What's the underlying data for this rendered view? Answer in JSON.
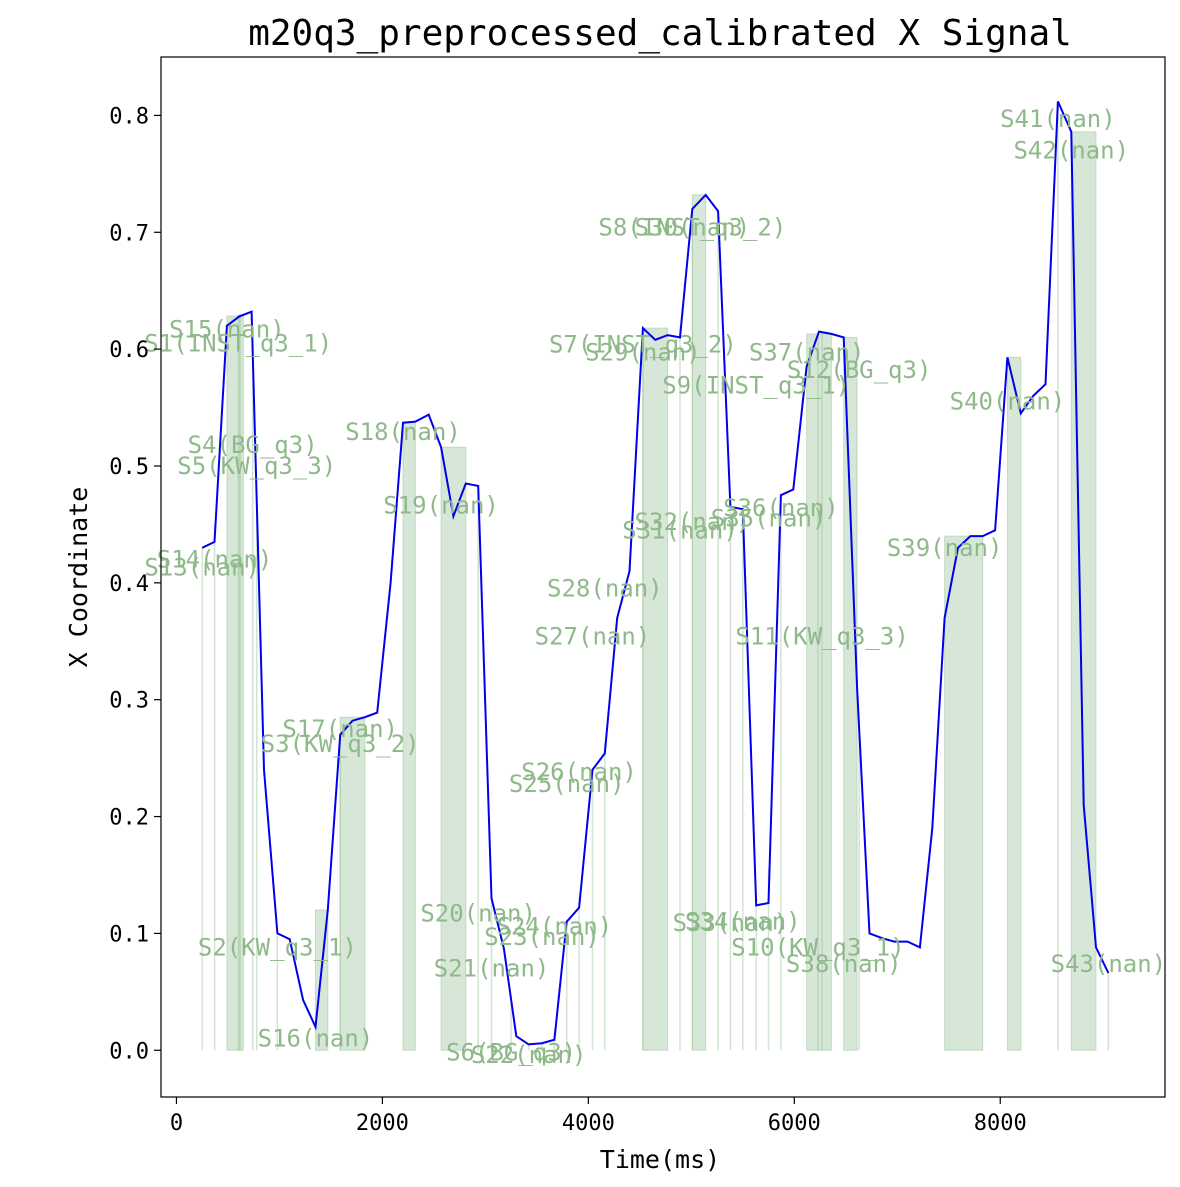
{
  "chart_data": {
    "type": "line",
    "title": "m20q3_preprocessed_calibrated X Signal",
    "xlabel": "Time(ms)",
    "ylabel": "X Coordinate",
    "xlim": [
      -150,
      9600
    ],
    "ylim": [
      -0.04,
      0.85
    ],
    "xticks": [
      0,
      2000,
      4000,
      6000,
      8000
    ],
    "xtick_labels": [
      "0",
      "2000",
      "4000",
      "6000",
      "8000"
    ],
    "yticks": [
      0.0,
      0.1,
      0.2,
      0.3,
      0.4,
      0.5,
      0.6,
      0.7,
      0.8
    ],
    "ytick_labels": [
      "0.0",
      "0.1",
      "0.2",
      "0.3",
      "0.4",
      "0.5",
      "0.6",
      "0.7",
      "0.8"
    ],
    "grid": false,
    "colors": {
      "signal": "#0000ee",
      "segments": "#9bc49a",
      "segment_text": "#8fb98a"
    },
    "series": [
      {
        "x": [
          250,
          370,
          490,
          610,
          730,
          850,
          980,
          1100,
          1230,
          1350,
          1470,
          1590,
          1710,
          1830,
          1950,
          2080,
          2200,
          2320,
          2450,
          2570,
          2690,
          2810,
          2930,
          3060,
          3180,
          3300,
          3420,
          3550,
          3670,
          3790,
          3910,
          4040,
          4160,
          4280,
          4400,
          4530,
          4650,
          4770,
          4890,
          5010,
          5140,
          5260,
          5380,
          5500,
          5630,
          5750,
          5870,
          5990,
          6120,
          6240,
          6360,
          6480,
          6610,
          6730,
          6850,
          6970,
          7100,
          7220,
          7340,
          7460,
          7590,
          7710,
          7830,
          7950,
          8070,
          8200,
          8320,
          8440,
          8560,
          8690,
          8810,
          8930,
          9050
        ],
        "values": [
          0.43,
          0.435,
          0.62,
          0.628,
          0.632,
          0.24,
          0.1,
          0.095,
          0.043,
          0.02,
          0.12,
          0.27,
          0.282,
          0.285,
          0.289,
          0.4,
          0.537,
          0.538,
          0.544,
          0.516,
          0.457,
          0.485,
          0.483,
          0.13,
          0.087,
          0.012,
          0.005,
          0.006,
          0.009,
          0.11,
          0.122,
          0.24,
          0.254,
          0.37,
          0.41,
          0.618,
          0.608,
          0.612,
          0.61,
          0.72,
          0.732,
          0.718,
          0.465,
          0.463,
          0.124,
          0.126,
          0.475,
          0.48,
          0.585,
          0.615,
          0.613,
          0.61,
          0.31,
          0.1,
          0.096,
          0.093,
          0.093,
          0.088,
          0.19,
          0.37,
          0.43,
          0.44,
          0.44,
          0.445,
          0.593,
          0.545,
          0.56,
          0.57,
          0.812,
          0.786,
          0.21,
          0.088,
          0.066
        ]
      }
    ],
    "segments": [
      {
        "label": "S1(INST_q3_1)",
        "start": 600,
        "end": 650
      },
      {
        "label": "S2(KW_q3_1)",
        "start": 980,
        "end": 1000
      },
      {
        "label": "S3(KW_q3_2)",
        "start": 1590,
        "end": 1610
      },
      {
        "label": "S4(BG_q3)",
        "start": 740,
        "end": 760
      },
      {
        "label": "S5(KW_q3_3)",
        "start": 780,
        "end": 790
      },
      {
        "label": "S6(BG_q3)",
        "start": 3250,
        "end": 3270
      },
      {
        "label": "S7(INST_q3_2)",
        "start": 4530,
        "end": 4550
      },
      {
        "label": "S8(INST_q3_2)",
        "start": 5010,
        "end": 5030
      },
      {
        "label": "S9(INST_q3_1)",
        "start": 5630,
        "end": 5650
      },
      {
        "label": "S10(KW_q3_1)",
        "start": 6230,
        "end": 6250
      },
      {
        "label": "S11(KW_q3_3)",
        "start": 6270,
        "end": 6290
      },
      {
        "label": "S12(BG_q3)",
        "start": 6630,
        "end": 6650
      },
      {
        "label": "S13(nan)",
        "start": 250,
        "end": 260
      },
      {
        "label": "S14(nan)",
        "start": 370,
        "end": 380
      },
      {
        "label": "S15(nan)",
        "start": 490,
        "end": 620
      },
      {
        "label": "S16(nan)",
        "start": 1350,
        "end": 1470
      },
      {
        "label": "S17(nan)",
        "start": 1590,
        "end": 1830
      },
      {
        "label": "S18(nan)",
        "start": 2200,
        "end": 2320
      },
      {
        "label": "S19(nan)",
        "start": 2570,
        "end": 2810
      },
      {
        "label": "S20(nan)",
        "start": 2930,
        "end": 2940
      },
      {
        "label": "S21(nan)",
        "start": 3060,
        "end": 3070
      },
      {
        "label": "S22(nan)",
        "start": 3420,
        "end": 3430
      },
      {
        "label": "S23(nan)",
        "start": 3550,
        "end": 3560
      },
      {
        "label": "S24(nan)",
        "start": 3670,
        "end": 3680
      },
      {
        "label": "S25(nan)",
        "start": 3790,
        "end": 3800
      },
      {
        "label": "S26(nan)",
        "start": 3910,
        "end": 3920
      },
      {
        "label": "S27(nan)",
        "start": 4040,
        "end": 4050
      },
      {
        "label": "S28(nan)",
        "start": 4160,
        "end": 4170
      },
      {
        "label": "S29(nan)",
        "start": 4530,
        "end": 4770
      },
      {
        "label": "S30(nan)",
        "start": 5010,
        "end": 5140
      },
      {
        "label": "S31(nan)",
        "start": 4890,
        "end": 4900
      },
      {
        "label": "S32(nan)",
        "start": 5260,
        "end": 5270
      },
      {
        "label": "S33(nan)",
        "start": 5380,
        "end": 5390
      },
      {
        "label": "S34(nan)",
        "start": 5500,
        "end": 5510
      },
      {
        "label": "S35(nan)",
        "start": 5750,
        "end": 5760
      },
      {
        "label": "S36(nan)",
        "start": 5870,
        "end": 5880
      },
      {
        "label": "S37(nan)",
        "start": 6120,
        "end": 6360
      },
      {
        "label": "S38(nan)",
        "start": 6480,
        "end": 6610
      },
      {
        "label": "S39(nan)",
        "start": 7460,
        "end": 7830
      },
      {
        "label": "S40(nan)",
        "start": 8070,
        "end": 8200
      },
      {
        "label": "S41(nan)",
        "start": 8560,
        "end": 8570
      },
      {
        "label": "S42(nan)",
        "start": 8690,
        "end": 8930
      },
      {
        "label": "S43(nan)",
        "start": 9050,
        "end": 9060
      }
    ],
    "segment_labels": [
      {
        "label": "S1(INST_q3_1)",
        "x": 600,
        "y": 0.605
      },
      {
        "label": "S2(KW_q3_1)",
        "x": 980,
        "y": 0.088
      },
      {
        "label": "S3(KW_q3_2)",
        "x": 1590,
        "y": 0.262
      },
      {
        "label": "S4(BG_q3)",
        "x": 740,
        "y": 0.518
      },
      {
        "label": "S5(KW_q3_3)",
        "x": 780,
        "y": 0.5
      },
      {
        "label": "S6(BG_q3)",
        "x": 3250,
        "y": -0.002
      },
      {
        "label": "S7(INST_q3_2)",
        "x": 4530,
        "y": 0.604
      },
      {
        "label": "S8(INST_q3_2)",
        "x": 5010,
        "y": 0.704
      },
      {
        "label": "S9(INST_q3_1)",
        "x": 5630,
        "y": 0.569
      },
      {
        "label": "S10(KW_q3_1)",
        "x": 6230,
        "y": 0.088
      },
      {
        "label": "S11(KW_q3_3)",
        "x": 6270,
        "y": 0.354
      },
      {
        "label": "S12(BG_q3)",
        "x": 6630,
        "y": 0.582
      },
      {
        "label": "S13(nan)",
        "x": 250,
        "y": 0.413
      },
      {
        "label": "S14(nan)",
        "x": 370,
        "y": 0.42
      },
      {
        "label": "S15(nan)",
        "x": 490,
        "y": 0.617
      },
      {
        "label": "S16(nan)",
        "x": 1350,
        "y": 0.01
      },
      {
        "label": "S17(nan)",
        "x": 1590,
        "y": 0.275
      },
      {
        "label": "S18(nan)",
        "x": 2200,
        "y": 0.529
      },
      {
        "label": "S19(nan)",
        "x": 2570,
        "y": 0.466
      },
      {
        "label": "S20(nan)",
        "x": 2930,
        "y": 0.117
      },
      {
        "label": "S21(nan)",
        "x": 3060,
        "y": 0.07
      },
      {
        "label": "S22(nan)",
        "x": 3420,
        "y": -0.004
      },
      {
        "label": "S23(nan)",
        "x": 3550,
        "y": 0.097
      },
      {
        "label": "S24(nan)",
        "x": 3670,
        "y": 0.106
      },
      {
        "label": "S25(nan)",
        "x": 3790,
        "y": 0.228
      },
      {
        "label": "S26(nan)",
        "x": 3910,
        "y": 0.238
      },
      {
        "label": "S27(nan)",
        "x": 4040,
        "y": 0.354
      },
      {
        "label": "S28(nan)",
        "x": 4160,
        "y": 0.395
      },
      {
        "label": "S29(nan)",
        "x": 4530,
        "y": 0.597
      },
      {
        "label": "S30(nan)",
        "x": 5010,
        "y": 0.704
      },
      {
        "label": "S31(nan)",
        "x": 4890,
        "y": 0.445
      },
      {
        "label": "S32(nan)",
        "x": 5010,
        "y": 0.452
      },
      {
        "label": "S33(nan)",
        "x": 5380,
        "y": 0.109
      },
      {
        "label": "S34(nan)",
        "x": 5500,
        "y": 0.11
      },
      {
        "label": "S35(nan)",
        "x": 5750,
        "y": 0.455
      },
      {
        "label": "S36(nan)",
        "x": 5870,
        "y": 0.464
      },
      {
        "label": "S37(nan)",
        "x": 6120,
        "y": 0.597
      },
      {
        "label": "S38(nan)",
        "x": 6480,
        "y": 0.074
      },
      {
        "label": "S39(nan)",
        "x": 7460,
        "y": 0.43
      },
      {
        "label": "S40(nan)",
        "x": 8070,
        "y": 0.555
      },
      {
        "label": "S41(nan)",
        "x": 8560,
        "y": 0.797
      },
      {
        "label": "S42(nan)",
        "x": 8690,
        "y": 0.77
      },
      {
        "label": "S43(nan)",
        "x": 9050,
        "y": 0.074
      }
    ]
  }
}
